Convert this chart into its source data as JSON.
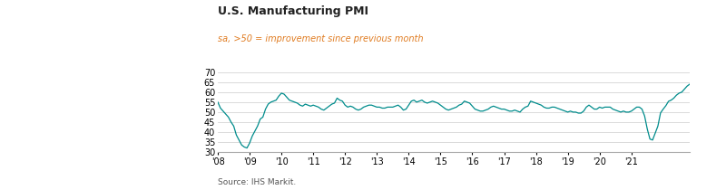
{
  "title": "U.S. Manufacturing PMI",
  "subtitle": "sa, >50 = improvement since previous month",
  "source": "Source: IHS Markit.",
  "title_color": "#222222",
  "subtitle_color": "#e07b20",
  "line_color": "#008c8c",
  "source_color": "#555555",
  "background_color": "#ffffff",
  "ylim": [
    30,
    70
  ],
  "yticks": [
    30,
    35,
    40,
    45,
    50,
    55,
    60,
    65,
    70
  ],
  "xtick_labels": [
    "'08",
    "'09",
    "'10",
    "'11",
    "'12",
    "'13",
    "'14",
    "'15",
    "'16",
    "'17",
    "'18",
    "'19",
    "'20",
    "'21"
  ],
  "values": [
    55.0,
    52.0,
    50.5,
    49.0,
    47.5,
    45.0,
    43.0,
    38.5,
    36.0,
    33.5,
    32.5,
    32.0,
    34.5,
    38.0,
    40.5,
    43.0,
    46.5,
    47.5,
    51.5,
    54.0,
    55.0,
    55.5,
    56.0,
    58.0,
    59.5,
    59.0,
    57.5,
    56.0,
    55.5,
    55.0,
    54.5,
    53.5,
    53.0,
    54.0,
    53.5,
    53.0,
    53.5,
    53.0,
    52.5,
    51.5,
    51.0,
    52.0,
    53.0,
    54.0,
    54.5,
    57.0,
    56.0,
    55.5,
    53.5,
    52.5,
    53.0,
    52.5,
    51.5,
    51.0,
    51.5,
    52.5,
    53.0,
    53.5,
    53.5,
    53.0,
    52.5,
    52.5,
    52.0,
    52.0,
    52.5,
    52.5,
    52.5,
    53.0,
    53.5,
    52.5,
    51.0,
    51.5,
    53.5,
    55.5,
    56.0,
    55.0,
    55.5,
    56.0,
    55.0,
    54.5,
    55.0,
    55.5,
    55.0,
    54.5,
    53.5,
    52.5,
    51.5,
    51.0,
    51.5,
    52.0,
    52.5,
    53.5,
    54.0,
    55.5,
    55.0,
    54.5,
    53.0,
    51.5,
    51.0,
    50.5,
    50.5,
    51.0,
    51.5,
    52.5,
    53.0,
    52.5,
    52.0,
    51.5,
    51.5,
    51.0,
    50.5,
    50.5,
    51.0,
    50.5,
    50.0,
    51.5,
    52.5,
    53.0,
    55.5,
    55.0,
    54.5,
    54.0,
    53.5,
    52.5,
    52.0,
    52.0,
    52.5,
    52.5,
    52.0,
    51.5,
    51.0,
    50.5,
    50.0,
    50.5,
    50.0,
    50.0,
    49.5,
    49.5,
    50.5,
    52.5,
    53.5,
    52.5,
    51.5,
    51.5,
    52.5,
    52.0,
    52.5,
    52.5,
    52.5,
    51.5,
    51.0,
    50.5,
    50.0,
    50.5,
    50.0,
    50.0,
    50.5,
    51.5,
    52.5,
    52.5,
    51.5,
    48.0,
    41.5,
    36.5,
    36.0,
    39.5,
    43.0,
    49.6,
    51.5,
    53.2,
    55.4,
    56.0,
    57.0,
    58.5,
    59.5,
    60.0,
    61.5,
    63.0,
    64.0
  ]
}
